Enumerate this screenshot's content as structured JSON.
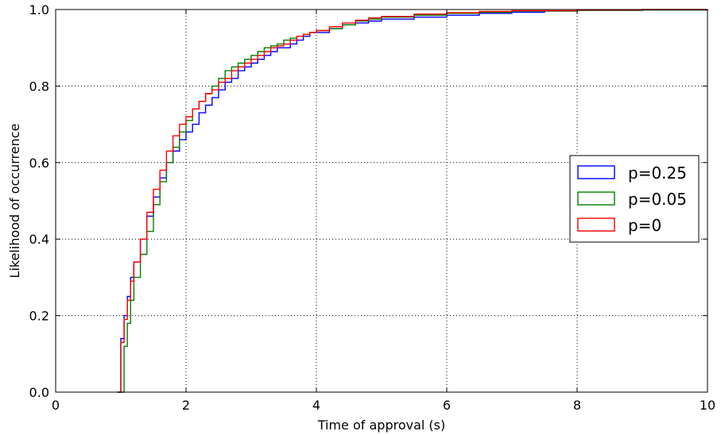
{
  "chart_data": {
    "type": "line",
    "step": true,
    "xlabel": "Time of approval (s)",
    "ylabel": "Likelihood of occurrence",
    "xlim": [
      0,
      10
    ],
    "ylim": [
      0,
      1.0
    ],
    "xticks": [
      "0",
      "2",
      "4",
      "6",
      "8",
      "10"
    ],
    "yticks": [
      "0.0",
      "0.2",
      "0.4",
      "0.6",
      "0.8",
      "1.0"
    ],
    "grid": true,
    "legend_position": "center-right",
    "series": [
      {
        "name": "p=0.25",
        "color": "#0000ff",
        "x": [
          0.95,
          1.0,
          1.05,
          1.1,
          1.15,
          1.2,
          1.3,
          1.4,
          1.5,
          1.6,
          1.7,
          1.8,
          1.9,
          2.0,
          2.1,
          2.2,
          2.3,
          2.4,
          2.5,
          2.6,
          2.7,
          2.8,
          2.9,
          3.0,
          3.1,
          3.2,
          3.3,
          3.4,
          3.5,
          3.6,
          3.7,
          3.8,
          3.9,
          4.0,
          4.2,
          4.4,
          4.6,
          4.8,
          5.0,
          5.5,
          6.0,
          6.5,
          7.0,
          7.5,
          8.0,
          9.0,
          10.0
        ],
        "y": [
          0.0,
          0.14,
          0.2,
          0.25,
          0.3,
          0.34,
          0.4,
          0.46,
          0.51,
          0.56,
          0.6,
          0.63,
          0.66,
          0.68,
          0.7,
          0.73,
          0.75,
          0.77,
          0.79,
          0.81,
          0.82,
          0.84,
          0.85,
          0.86,
          0.87,
          0.88,
          0.89,
          0.9,
          0.9,
          0.91,
          0.92,
          0.93,
          0.94,
          0.94,
          0.95,
          0.96,
          0.965,
          0.97,
          0.975,
          0.98,
          0.985,
          0.99,
          0.993,
          0.996,
          0.998,
          0.999,
          1.0
        ]
      },
      {
        "name": "p=0.05",
        "color": "#008000",
        "x": [
          0.95,
          1.05,
          1.1,
          1.15,
          1.2,
          1.3,
          1.4,
          1.5,
          1.6,
          1.7,
          1.8,
          1.9,
          2.0,
          2.1,
          2.2,
          2.3,
          2.4,
          2.5,
          2.6,
          2.7,
          2.8,
          2.9,
          3.0,
          3.1,
          3.2,
          3.3,
          3.4,
          3.5,
          3.6,
          3.7,
          3.8,
          3.9,
          4.0,
          4.2,
          4.4,
          4.6,
          4.8,
          5.0,
          5.5,
          6.0,
          6.5,
          7.0,
          8.0,
          9.0,
          10.0
        ],
        "y": [
          0.0,
          0.12,
          0.18,
          0.24,
          0.3,
          0.36,
          0.42,
          0.49,
          0.55,
          0.6,
          0.64,
          0.68,
          0.71,
          0.74,
          0.76,
          0.78,
          0.8,
          0.82,
          0.84,
          0.85,
          0.86,
          0.87,
          0.88,
          0.89,
          0.9,
          0.905,
          0.91,
          0.92,
          0.925,
          0.93,
          0.935,
          0.94,
          0.945,
          0.95,
          0.96,
          0.97,
          0.975,
          0.98,
          0.985,
          0.99,
          0.993,
          0.996,
          0.998,
          0.999,
          1.0
        ]
      },
      {
        "name": "p=0",
        "color": "#ff0000",
        "x": [
          0.95,
          1.0,
          1.05,
          1.1,
          1.15,
          1.2,
          1.3,
          1.4,
          1.5,
          1.6,
          1.7,
          1.8,
          1.9,
          2.0,
          2.1,
          2.2,
          2.3,
          2.4,
          2.5,
          2.6,
          2.7,
          2.8,
          2.9,
          3.0,
          3.1,
          3.2,
          3.3,
          3.4,
          3.5,
          3.6,
          3.7,
          3.8,
          3.9,
          4.0,
          4.2,
          4.4,
          4.6,
          4.8,
          5.0,
          5.5,
          6.0,
          6.5,
          7.0,
          8.0,
          9.0,
          10.0
        ],
        "y": [
          0.0,
          0.13,
          0.19,
          0.24,
          0.29,
          0.34,
          0.4,
          0.47,
          0.53,
          0.58,
          0.63,
          0.67,
          0.7,
          0.72,
          0.74,
          0.76,
          0.78,
          0.79,
          0.81,
          0.82,
          0.84,
          0.85,
          0.86,
          0.87,
          0.88,
          0.89,
          0.9,
          0.905,
          0.91,
          0.92,
          0.93,
          0.935,
          0.94,
          0.945,
          0.955,
          0.965,
          0.972,
          0.978,
          0.982,
          0.988,
          0.992,
          0.995,
          0.997,
          0.999,
          1.0,
          1.0
        ]
      }
    ]
  }
}
